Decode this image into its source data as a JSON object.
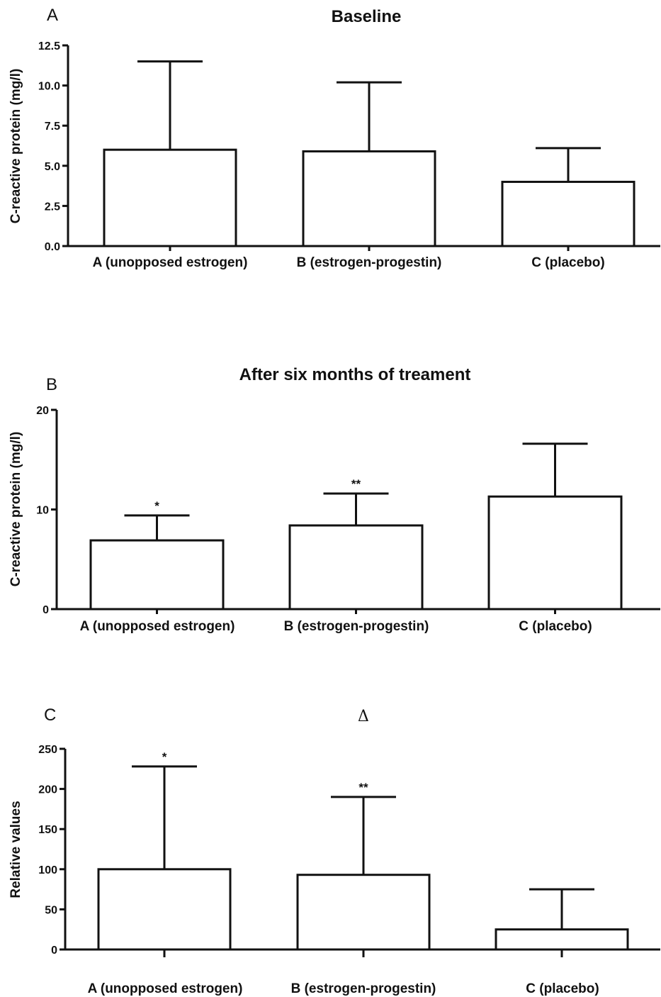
{
  "chart_data": [
    {
      "panel_label": "A",
      "type": "bar",
      "title": "Baseline",
      "ylabel": "C-reactive protein (mg/l)",
      "xlabel": "",
      "categories": [
        "A (unopposed estrogen)",
        "B (estrogen-progestin)",
        "C (placebo)"
      ],
      "values": [
        6.0,
        5.9,
        4.0
      ],
      "error_upper": [
        11.5,
        10.2,
        6.1
      ],
      "annotations": [
        "",
        "",
        ""
      ],
      "ylim": [
        0,
        12.5
      ],
      "yticks": [
        0,
        2.5,
        5,
        7.5,
        10,
        12.5
      ],
      "ytick_labels": [
        "0.0",
        "2.5",
        "5.0",
        "7.5",
        "10.0",
        "12.5"
      ],
      "grid": false
    },
    {
      "panel_label": "B",
      "type": "bar",
      "title": "After six months of treament",
      "ylabel": "C-reactive protein (mg/l)",
      "xlabel": "",
      "categories": [
        "A (unopposed estrogen)",
        "B (estrogen-progestin)",
        "C (placebo)"
      ],
      "values": [
        6.9,
        8.4,
        11.3
      ],
      "error_upper": [
        9.4,
        11.6,
        16.6
      ],
      "annotations": [
        "*",
        "**",
        ""
      ],
      "ylim": [
        0,
        20
      ],
      "yticks": [
        0,
        10,
        20
      ],
      "ytick_labels": [
        "0",
        "10",
        "20"
      ],
      "grid": false
    },
    {
      "panel_label": "C",
      "type": "bar",
      "title": "Δ",
      "ylabel": "Relative values",
      "xlabel": "",
      "categories": [
        "A (unopposed estrogen)",
        "B (estrogen-progestin)",
        "C (placebo)"
      ],
      "values": [
        100,
        93,
        25
      ],
      "error_upper": [
        228,
        190,
        75
      ],
      "annotations": [
        "*",
        "**",
        ""
      ],
      "ylim": [
        0,
        250
      ],
      "yticks": [
        0,
        50,
        100,
        150,
        200,
        250
      ],
      "ytick_labels": [
        "0",
        "50",
        "100",
        "150",
        "200",
        "250"
      ],
      "grid": false
    }
  ]
}
